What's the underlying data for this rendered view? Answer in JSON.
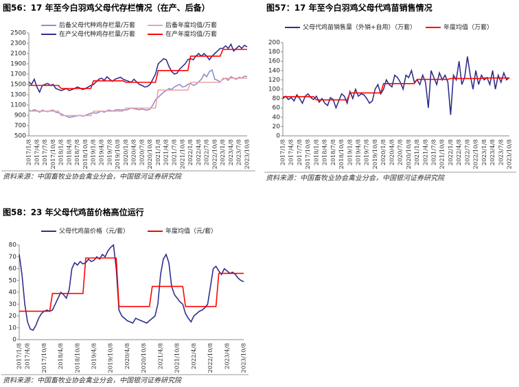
{
  "chart_data": [
    {
      "type": "line",
      "title": "图56：17 年至今白羽鸡父母代存栏情况（在产、后备）",
      "source": "资料来源：中国畜牧业协会禽业分会，中国银河证券研究院",
      "categories": [
        "2017/1/8",
        null,
        null,
        "2017/4/8",
        null,
        null,
        "2017/7/8",
        null,
        null,
        "2017/10/8",
        null,
        null,
        "2018/1/8",
        null,
        null,
        "2018/4/8",
        null,
        null,
        "2018/7/8",
        null,
        null,
        "2018/10/8",
        null,
        null,
        "2019/1/8",
        null,
        null,
        "2019/4/8",
        null,
        null,
        "2019/7/8",
        null,
        null,
        "2019/10/8",
        null,
        null,
        "2020/1/8",
        null,
        null,
        "2020/4/8",
        null,
        null,
        "2020/7/8",
        null,
        null,
        "2020/10/8",
        null,
        null,
        "2021/1/8",
        null,
        null,
        "2021/4/8",
        null,
        null,
        "2021/7/8",
        null,
        null,
        "2021/10/8",
        null,
        null,
        "2022/1/8",
        null,
        null,
        "2022/4/8",
        null,
        null,
        "2022/7/8",
        null,
        null,
        "2022/10/8",
        null,
        null,
        "2023/1/8",
        null,
        null,
        "2023/4/8",
        null,
        null,
        "2023/7/8",
        null,
        null,
        "2023/10/8"
      ],
      "ylim": [
        500,
        2500
      ],
      "yticks": [
        500,
        700,
        900,
        1100,
        1300,
        1500,
        1700,
        1900,
        2100,
        2300,
        2500
      ],
      "series": [
        {
          "name": "后备父母代种鸡存栏量/万套",
          "color": "#8e8ecf",
          "values": [
            1000,
            980,
            1010,
            990,
            960,
            1000,
            980,
            970,
            990,
            1000,
            960,
            950,
            930,
            900,
            880,
            860,
            870,
            880,
            890,
            900,
            880,
            900,
            920,
            940,
            950,
            940,
            960,
            980,
            960,
            990,
            1000,
            980,
            1000,
            1010,
            1000,
            1010,
            1000,
            1020,
            1040,
            1030,
            1020,
            1010,
            1020,
            1010,
            1000,
            1020,
            1100,
            1200,
            1250,
            1300,
            1350,
            1380,
            1420,
            1400,
            1450,
            1480,
            1500,
            1450,
            1460,
            1500,
            1520,
            1480,
            1500,
            1550,
            1600,
            1700,
            1650,
            1750,
            1780,
            1600,
            1580,
            1550,
            1600,
            1620,
            1580,
            1650,
            1620,
            1600,
            1640,
            1620,
            1660,
            1650
          ]
        },
        {
          "name": "后备年度均值/万套",
          "color": "#f4a0a0",
          "values": [
            980,
            980,
            980,
            980,
            980,
            980,
            980,
            980,
            980,
            980,
            980,
            980,
            895,
            895,
            895,
            895,
            895,
            895,
            895,
            895,
            895,
            895,
            895,
            895,
            980,
            980,
            980,
            980,
            980,
            980,
            980,
            980,
            980,
            980,
            980,
            980,
            1040,
            1040,
            1040,
            1040,
            1040,
            1040,
            1040,
            1040,
            1040,
            1040,
            1040,
            1040,
            1390,
            1390,
            1390,
            1390,
            1390,
            1390,
            1390,
            1390,
            1390,
            1390,
            1390,
            1390,
            1540,
            1540,
            1540,
            1540,
            1540,
            1540,
            1540,
            1540,
            1540,
            1540,
            1540,
            1540,
            1620,
            1620,
            1620,
            1620,
            1620,
            1620,
            1620,
            1620,
            1620,
            1620
          ]
        },
        {
          "name": "在产父母代种鸡存栏量/万套",
          "color": "#2e2e8c",
          "values": [
            1550,
            1500,
            1600,
            1450,
            1350,
            1480,
            1500,
            1520,
            1480,
            1500,
            1420,
            1400,
            1380,
            1400,
            1420,
            1380,
            1400,
            1420,
            1450,
            1430,
            1400,
            1420,
            1450,
            1480,
            1500,
            1550,
            1600,
            1620,
            1580,
            1650,
            1600,
            1560,
            1600,
            1620,
            1640,
            1600,
            1580,
            1560,
            1540,
            1600,
            1550,
            1500,
            1480,
            1450,
            1460,
            1500,
            1600,
            1700,
            1900,
            1950,
            2000,
            1980,
            1850,
            1750,
            1700,
            1720,
            1800,
            1850,
            1900,
            1980,
            2000,
            1980,
            2050,
            2100,
            2050,
            2100,
            2050,
            1980,
            2050,
            2100,
            2150,
            2200,
            2200,
            2250,
            2200,
            2280,
            2150,
            2200,
            2250,
            2200,
            2260,
            2230
          ]
        },
        {
          "name": "在产年度均值/万套",
          "color": "#ff0000",
          "values": [
            1480,
            1480,
            1480,
            1480,
            1480,
            1480,
            1480,
            1480,
            1480,
            1480,
            1480,
            1480,
            1420,
            1420,
            1420,
            1420,
            1420,
            1420,
            1420,
            1420,
            1420,
            1420,
            1420,
            1420,
            1570,
            1570,
            1570,
            1570,
            1570,
            1570,
            1570,
            1570,
            1570,
            1570,
            1570,
            1570,
            1540,
            1540,
            1540,
            1540,
            1540,
            1540,
            1540,
            1540,
            1540,
            1540,
            1540,
            1540,
            1770,
            1770,
            1770,
            1770,
            1770,
            1770,
            1770,
            1770,
            1770,
            1770,
            1770,
            1770,
            2050,
            2050,
            2050,
            2050,
            2050,
            2050,
            2050,
            2050,
            2050,
            2050,
            2050,
            2050,
            2180,
            2180,
            2180,
            2180,
            2180,
            2180,
            2180,
            2180,
            2180,
            2180
          ]
        }
      ]
    },
    {
      "type": "line",
      "title": "图57：17 年至今白羽鸡父母代鸡苗销售情况",
      "source": "资料来源：中国畜牧业协会禽业分会，中国银河证券研究院",
      "categories": [
        "2017/1/8",
        null,
        null,
        "2017/4/8",
        null,
        null,
        "2017/7/8",
        null,
        null,
        "2017/10/8",
        null,
        null,
        "2018/1/8",
        null,
        null,
        "2018/4/8",
        null,
        null,
        "2018/7/8",
        null,
        null,
        "2018/10/8",
        null,
        null,
        "2019/1/8",
        null,
        null,
        "2019/4/8",
        null,
        null,
        "2019/7/8",
        null,
        null,
        "2019/10/8",
        null,
        null,
        "2020/1/8",
        null,
        null,
        "2020/4/8",
        null,
        null,
        "2020/7/8",
        null,
        null,
        "2020/10/8",
        null,
        null,
        "2021/1/8",
        null,
        null,
        "2021/4/8",
        null,
        null,
        "2021/7/8",
        null,
        null,
        "2021/10/8",
        null,
        null,
        "2022/1/8",
        null,
        null,
        "2022/4/8",
        null,
        null,
        "2022/7/8",
        null,
        null,
        "2022/10/8",
        null,
        null,
        "2023/1/8",
        null,
        null,
        "2023/4/8",
        null,
        null,
        "2023/7/8",
        null,
        null,
        "2023/10/8"
      ],
      "ylim": [
        0,
        200
      ],
      "yticks": [
        0,
        20,
        40,
        60,
        80,
        100,
        120,
        140,
        160,
        180,
        200
      ],
      "series": [
        {
          "name": "父母代鸡苗销售量（外销+自用）（万套）",
          "color": "#2e2e8c",
          "values": [
            80,
            85,
            78,
            82,
            75,
            88,
            80,
            70,
            85,
            90,
            82,
            78,
            85,
            72,
            80,
            70,
            65,
            82,
            78,
            60,
            75,
            90,
            85,
            70,
            95,
            80,
            100,
            85,
            90,
            88,
            80,
            70,
            75,
            100,
            110,
            90,
            100,
            120,
            110,
            105,
            130,
            125,
            115,
            100,
            130,
            125,
            140,
            115,
            120,
            110,
            130,
            115,
            60,
            140,
            125,
            110,
            135,
            120,
            130,
            115,
            45,
            130,
            120,
            160,
            110,
            125,
            170,
            130,
            100,
            140,
            110,
            130,
            120,
            125,
            110,
            140,
            100,
            130,
            115,
            135,
            120,
            125
          ]
        },
        {
          "name": "年度均值（万套）",
          "color": "#ff0000",
          "values": [
            84,
            84,
            84,
            84,
            84,
            84,
            84,
            84,
            84,
            84,
            84,
            84,
            77,
            77,
            77,
            77,
            77,
            77,
            77,
            77,
            77,
            77,
            77,
            77,
            92,
            92,
            92,
            92,
            92,
            92,
            92,
            92,
            92,
            92,
            92,
            92,
            112,
            112,
            112,
            112,
            112,
            112,
            112,
            112,
            112,
            112,
            112,
            112,
            121,
            121,
            121,
            121,
            121,
            121,
            121,
            121,
            121,
            121,
            121,
            121,
            123,
            123,
            123,
            123,
            123,
            123,
            123,
            123,
            123,
            123,
            123,
            123,
            124,
            124,
            124,
            124,
            124,
            124,
            124,
            124,
            124,
            124
          ]
        }
      ]
    },
    {
      "type": "line",
      "title": "图58：23 年父母代鸡苗价格高位运行",
      "source": "资料来源：中国畜牧业协会禽业分会，中国银河证券研究院",
      "categories": [
        "2017/1/8",
        null,
        null,
        "2017/4/8",
        null,
        null,
        null,
        null,
        null,
        "2017/10/8",
        null,
        null,
        null,
        null,
        null,
        "2018/4/8",
        null,
        null,
        null,
        null,
        null,
        "2018/10/8",
        null,
        null,
        null,
        null,
        null,
        "2019/4/8",
        null,
        null,
        null,
        null,
        null,
        "2019/10/8",
        null,
        null,
        null,
        null,
        null,
        "2020/4/8",
        null,
        null,
        null,
        null,
        null,
        "2020/10/8",
        null,
        null,
        null,
        null,
        null,
        "2021/4/8",
        null,
        null,
        null,
        null,
        null,
        "2021/10/8",
        null,
        null,
        null,
        null,
        null,
        "2022/4/8",
        null,
        null,
        null,
        null,
        null,
        "2022/10/8",
        null,
        null,
        null,
        null,
        null,
        "2023/4/8",
        null,
        null,
        null,
        null,
        null,
        "2023/10/8"
      ],
      "ylim": [
        0,
        80
      ],
      "yticks": [
        0,
        10,
        20,
        30,
        40,
        50,
        60,
        70,
        80
      ],
      "series": [
        {
          "name": "父母代鸡苗价格（元/套）",
          "color": "#2e2e8c",
          "values": [
            72,
            55,
            30,
            15,
            9,
            8,
            12,
            18,
            22,
            24,
            25,
            24,
            25,
            30,
            35,
            40,
            38,
            35,
            42,
            60,
            65,
            63,
            66,
            64,
            65,
            68,
            66,
            67,
            70,
            68,
            72,
            70,
            75,
            78,
            80,
            60,
            25,
            20,
            18,
            16,
            15,
            14,
            18,
            17,
            16,
            15,
            14,
            16,
            18,
            20,
            30,
            55,
            68,
            72,
            65,
            45,
            38,
            35,
            32,
            30,
            22,
            18,
            15,
            20,
            22,
            24,
            25,
            27,
            30,
            45,
            60,
            62,
            58,
            55,
            60,
            58,
            56,
            57,
            55,
            52,
            50,
            49
          ]
        },
        {
          "name": "年度均值（元/套）",
          "color": "#ff0000",
          "values": [
            24,
            24,
            24,
            24,
            24,
            24,
            24,
            24,
            24,
            24,
            24,
            24,
            39,
            39,
            39,
            39,
            39,
            39,
            39,
            39,
            39,
            39,
            39,
            39,
            69,
            69,
            69,
            69,
            69,
            69,
            69,
            69,
            69,
            69,
            69,
            69,
            28,
            28,
            28,
            28,
            28,
            28,
            28,
            28,
            28,
            28,
            28,
            28,
            45,
            45,
            45,
            45,
            45,
            45,
            45,
            45,
            45,
            45,
            45,
            45,
            28,
            28,
            28,
            28,
            28,
            28,
            28,
            28,
            28,
            28,
            28,
            28,
            56,
            56,
            56,
            56,
            56,
            56,
            56,
            56,
            56,
            56
          ]
        }
      ]
    }
  ]
}
